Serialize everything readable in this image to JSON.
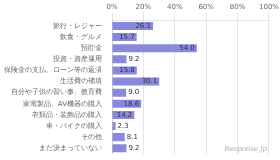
{
  "chart_data": {
    "type": "bar",
    "orientation": "horizontal",
    "categories": [
      "旅行・レジャー",
      "飲食・グルメ",
      "預貯金",
      "投資・資産運用",
      "保険金の支払、ローン等の返済",
      "生活費の補填",
      "自分や子供の習い事、教育費",
      "家電製品、AV機器の購入",
      "衣類品・装飾品の購入",
      "車・バイクの購入",
      "その他",
      "まだ決まっていない"
    ],
    "values": [
      26.1,
      15.7,
      54.0,
      9.2,
      15.8,
      30.1,
      9.0,
      18.6,
      14.2,
      2.3,
      8.1,
      9.2
    ],
    "value_labels": [
      "26.1",
      "15.7",
      "54.0",
      "9.2",
      "15.8",
      "30.1",
      "9.0",
      "18.6",
      "14.2",
      "2.3",
      "8.1",
      "9.2"
    ],
    "data_labels": true,
    "color": "#8888dd",
    "xlim": [
      0,
      100
    ],
    "xticks": [
      {
        "value": 0,
        "label": "0%"
      },
      {
        "value": 20,
        "label": "20%"
      },
      {
        "value": 40,
        "label": "40%"
      },
      {
        "value": 60,
        "label": "60%"
      },
      {
        "value": 80,
        "label": "80%"
      },
      {
        "value": 100,
        "label": "100%"
      }
    ],
    "grid": true,
    "annotations": [
      "Response.jp"
    ]
  }
}
